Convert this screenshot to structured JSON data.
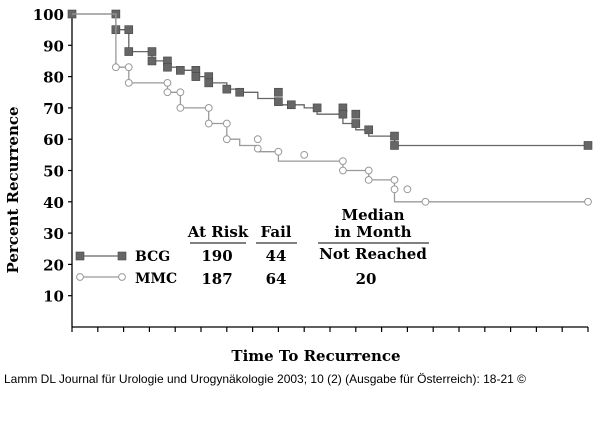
{
  "chart_data": {
    "type": "line",
    "xlabel": "Time To Recurrence",
    "ylabel": "Percent Recurrence",
    "ylim": [
      0,
      100
    ],
    "xlim": [
      0,
      100
    ],
    "yticks": [
      "10",
      "20",
      "30",
      "40",
      "50",
      "60",
      "70",
      "80",
      "90",
      "100"
    ],
    "ytick_values": [
      10,
      20,
      30,
      40,
      50,
      60,
      70,
      80,
      90,
      100
    ],
    "xtick_count": 21,
    "grid": false,
    "series": [
      {
        "name": "BCG",
        "color": "#666666",
        "marker": "filled-square",
        "x": [
          0,
          8.5,
          8.5,
          11,
          11,
          15.5,
          15.5,
          18.5,
          18.5,
          21,
          21,
          24,
          24,
          26.5,
          26.5,
          30,
          30,
          32.5,
          32.5,
          36,
          36,
          40,
          40,
          45,
          45,
          47.5,
          47.5,
          52.5,
          52.5,
          55,
          55,
          57.5,
          57.5,
          62.5,
          62.5,
          100
        ],
        "y": [
          100,
          100,
          95,
          95,
          88,
          88,
          85,
          85,
          83,
          83,
          82,
          82,
          80,
          80,
          78,
          78,
          76,
          76,
          75,
          75,
          73,
          73,
          71,
          71,
          70,
          70,
          68,
          68,
          65,
          65,
          63,
          63,
          61,
          61,
          58,
          58
        ],
        "markers_x": [
          0,
          8.5,
          8.5,
          11,
          11,
          15.5,
          15.5,
          18.5,
          18.5,
          21,
          24,
          24,
          26.5,
          26.5,
          30,
          32.5,
          40,
          40,
          42.5,
          47.5,
          52.5,
          52.5,
          55,
          55,
          57.5,
          62.5,
          62.5,
          100
        ],
        "markers_y": [
          100,
          100,
          95,
          95,
          88,
          88,
          85,
          85,
          83,
          82,
          82,
          80,
          80,
          78,
          76,
          75,
          75,
          72,
          71,
          70,
          70,
          68,
          68,
          65,
          63,
          61,
          58,
          58
        ]
      },
      {
        "name": "MMC",
        "color": "#999999",
        "marker": "open-circle",
        "x": [
          0,
          8.5,
          8.5,
          11,
          11,
          18.5,
          18.5,
          21,
          21,
          26.5,
          26.5,
          30,
          30,
          32.5,
          32.5,
          36,
          36,
          40,
          40,
          45,
          45,
          52.5,
          52.5,
          57.5,
          57.5,
          62.5,
          62.5,
          68.5,
          68.5,
          100
        ],
        "y": [
          100,
          100,
          83,
          83,
          78,
          78,
          75,
          75,
          70,
          70,
          65,
          65,
          60,
          60,
          58,
          58,
          56,
          56,
          53,
          53,
          53,
          53,
          50,
          50,
          47,
          47,
          40,
          40,
          40,
          40
        ],
        "markers_x": [
          8.5,
          11,
          11,
          18.5,
          18.5,
          21,
          21,
          26.5,
          26.5,
          30,
          30,
          36,
          36,
          40,
          45,
          52.5,
          52.5,
          57.5,
          57.5,
          62.5,
          62.5,
          65,
          68.5,
          100
        ],
        "markers_y": [
          83,
          83,
          78,
          78,
          75,
          75,
          70,
          70,
          65,
          65,
          60,
          60,
          57,
          56,
          55,
          53,
          50,
          50,
          47,
          47,
          44,
          44,
          40,
          40
        ]
      }
    ],
    "table": {
      "headers": [
        "At Risk",
        "Fail",
        "Median in Month"
      ],
      "median_header_lines": [
        "Median",
        "in Month"
      ],
      "rows": [
        {
          "label": "BCG",
          "at_risk": "190",
          "fail": "44",
          "median": "Not Reached"
        },
        {
          "label": "MMC",
          "at_risk": "187",
          "fail": "64",
          "median": "20"
        }
      ]
    }
  },
  "caption": "Lamm DL Journal für Urologie und Urogynäkologie 2003; 10 (2) (Ausgabe für Österreich): 18-21 ©"
}
